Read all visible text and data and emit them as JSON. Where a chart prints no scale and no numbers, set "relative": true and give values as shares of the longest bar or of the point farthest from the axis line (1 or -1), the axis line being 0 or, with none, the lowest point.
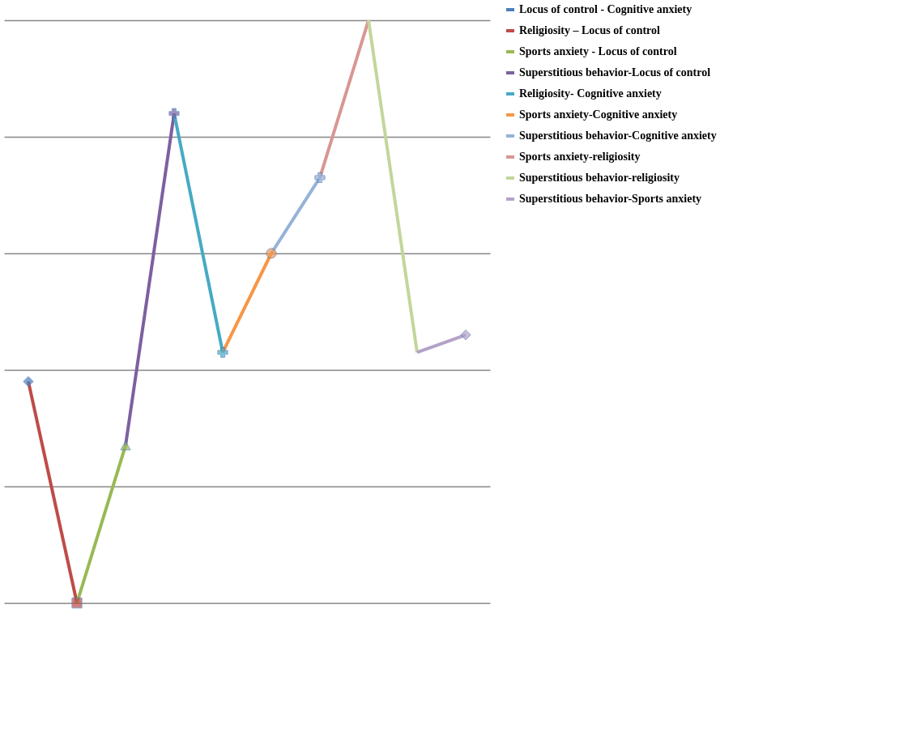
{
  "chart_data": {
    "type": "line",
    "relative": true,
    "grid": "y",
    "legend": "right",
    "categories": [
      null,
      null,
      null,
      null,
      null,
      null,
      null,
      null,
      null,
      null
    ],
    "series": [
      {
        "name": "Locus of control - Cognitive anxiety",
        "color": "#4a7ebb",
        "marker": "diamond",
        "values": [
          0.38,
          null,
          null,
          null,
          null,
          null,
          null,
          null,
          null,
          null
        ]
      },
      {
        "name": "Religiosity – Locus of control",
        "color": "#be4b48",
        "marker": "square",
        "values": [
          0.38,
          0,
          null,
          null,
          null,
          null,
          null,
          null,
          null,
          null
        ]
      },
      {
        "name": "Sports anxiety - Locus of control",
        "color": "#98b954",
        "marker": "triangle",
        "values": [
          null,
          0,
          0.27,
          null,
          null,
          null,
          null,
          null,
          null,
          null
        ]
      },
      {
        "name": "Superstitious behavior-Locus of control",
        "color": "#7d60a0",
        "marker": "cross",
        "values": [
          null,
          null,
          0.27,
          0.84,
          null,
          null,
          null,
          null,
          null,
          null
        ]
      },
      {
        "name": "Religiosity- Cognitive anxiety",
        "color": "#46aac5",
        "marker": "cross",
        "values": [
          null,
          null,
          null,
          0.84,
          0.43,
          null,
          null,
          null,
          null,
          null
        ]
      },
      {
        "name": "Sports anxiety-Cognitive anxiety",
        "color": "#f79646",
        "marker": "circle",
        "values": [
          null,
          null,
          null,
          null,
          0.43,
          0.6,
          null,
          null,
          null,
          null
        ]
      },
      {
        "name": "Superstitious behavior-Cognitive anxiety",
        "color": "#95b3d7",
        "marker": "cross",
        "values": [
          null,
          null,
          null,
          null,
          null,
          0.6,
          0.73,
          null,
          null,
          null
        ]
      },
      {
        "name": "Sports anxiety-religiosity",
        "color": "#d99694",
        "marker": "none",
        "values": [
          null,
          null,
          null,
          null,
          null,
          null,
          0.73,
          1,
          null,
          null
        ]
      },
      {
        "name": "Superstitious behavior-religiosity",
        "color": "#c3d69b",
        "marker": "none",
        "values": [
          null,
          null,
          null,
          null,
          null,
          null,
          null,
          1,
          0.43,
          null
        ]
      },
      {
        "name": "Superstitious behavior-Sports anxiety",
        "color": "#b3a2c7",
        "marker": "diamond",
        "values": [
          null,
          null,
          null,
          null,
          null,
          null,
          null,
          null,
          0.43,
          0.46
        ]
      }
    ]
  }
}
